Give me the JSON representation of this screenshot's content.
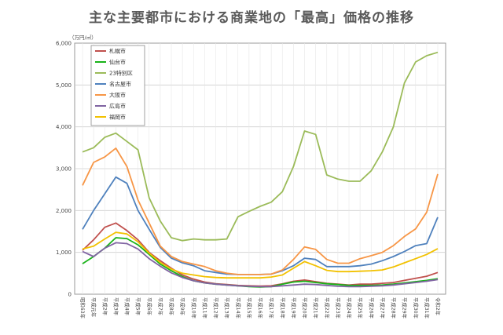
{
  "chart_data": {
    "type": "line",
    "title": "主な主要都市における商業地の「最高」価格の推移",
    "unit_label": "（万円/㎡）",
    "ylim": [
      0,
      6000
    ],
    "yticks": [
      "0",
      "1,000",
      "2,000",
      "3,000",
      "4,000",
      "5,000",
      "6,000"
    ],
    "grid": true,
    "legend_position": "top-left",
    "categories": [
      "昭和63年",
      "平成元年",
      "平成2年",
      "平成3年",
      "平成4年",
      "平成5年",
      "平成6年",
      "平成7年",
      "平成8年",
      "平成9年",
      "平成10年",
      "平成11年",
      "平成12年",
      "平成13年",
      "平成14年",
      "平成15年",
      "平成16年",
      "平成17年",
      "平成18年",
      "平成19年",
      "平成20年",
      "平成21年",
      "平成22年",
      "平成23年",
      "平成24年",
      "平成25年",
      "平成26年",
      "平成27年",
      "平成28年",
      "平成29年",
      "平成30年",
      "平成31年",
      "令和2年"
    ],
    "series": [
      {
        "name": "札幌市",
        "color": "#c0504d",
        "values": [
          1050,
          1300,
          1600,
          1700,
          1520,
          1300,
          1000,
          800,
          620,
          460,
          360,
          290,
          250,
          230,
          210,
          200,
          195,
          200,
          250,
          310,
          340,
          300,
          260,
          240,
          220,
          240,
          240,
          260,
          280,
          330,
          380,
          430,
          520
        ]
      },
      {
        "name": "仙台市",
        "color": "#19b319",
        "values": [
          730,
          900,
          1100,
          1350,
          1330,
          1180,
          950,
          720,
          560,
          420,
          320,
          270,
          240,
          220,
          200,
          180,
          170,
          180,
          240,
          290,
          310,
          280,
          250,
          230,
          210,
          210,
          210,
          220,
          240,
          270,
          300,
          330,
          370
        ]
      },
      {
        "name": "23特別区",
        "color": "#9bbb59",
        "values": [
          3400,
          3500,
          3750,
          3850,
          3650,
          3450,
          2300,
          1750,
          1350,
          1280,
          1320,
          1300,
          1300,
          1320,
          1850,
          1980,
          2100,
          2200,
          2450,
          3050,
          3900,
          3820,
          2850,
          2750,
          2700,
          2700,
          2950,
          3400,
          4000,
          5050,
          5550,
          5700,
          5780
        ]
      },
      {
        "name": "名古屋市",
        "color": "#4f81bd",
        "values": [
          1550,
          2000,
          2400,
          2800,
          2650,
          2000,
          1550,
          1120,
          860,
          750,
          680,
          560,
          520,
          480,
          470,
          470,
          470,
          480,
          560,
          680,
          860,
          830,
          660,
          660,
          660,
          680,
          720,
          800,
          900,
          1020,
          1160,
          1210,
          1840
        ]
      },
      {
        "name": "大阪市",
        "color": "#f79646",
        "values": [
          2600,
          3150,
          3280,
          3490,
          3050,
          2250,
          1700,
          1150,
          900,
          780,
          720,
          660,
          560,
          500,
          470,
          470,
          470,
          480,
          580,
          830,
          1130,
          1070,
          830,
          740,
          740,
          850,
          920,
          1000,
          1160,
          1380,
          1560,
          1960,
          2870
        ]
      },
      {
        "name": "広島市",
        "color": "#8064a2",
        "values": [
          1020,
          900,
          1100,
          1230,
          1210,
          1080,
          850,
          670,
          510,
          400,
          320,
          270,
          240,
          220,
          200,
          190,
          180,
          180,
          200,
          220,
          240,
          230,
          210,
          190,
          180,
          180,
          190,
          200,
          220,
          250,
          280,
          310,
          350
        ]
      },
      {
        "name": "福岡市",
        "color": "#f2c100",
        "values": [
          1080,
          1150,
          1320,
          1480,
          1440,
          1250,
          980,
          760,
          600,
          500,
          460,
          420,
          400,
          390,
          390,
          390,
          390,
          410,
          460,
          620,
          780,
          680,
          570,
          540,
          540,
          550,
          560,
          580,
          650,
          750,
          850,
          950,
          1090
        ]
      }
    ]
  }
}
